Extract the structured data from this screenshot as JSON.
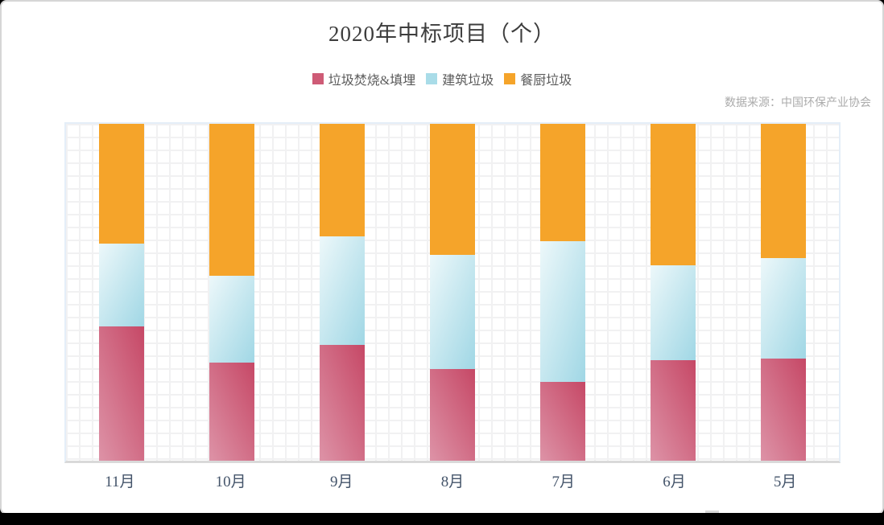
{
  "chart_data": {
    "type": "bar",
    "stacked": true,
    "normalized": "each bar fills full plot height; values are percent shares estimated from segment pixel heights",
    "title": "2020年中标项目（个）",
    "source_note": "数据来源：中国环保产业协会",
    "categories": [
      "11月",
      "10月",
      "9月",
      "8月",
      "7月",
      "6月",
      "5月"
    ],
    "series": [
      {
        "name": "垃圾焚烧&填埋",
        "color": "#ce5b76",
        "gradient": {
          "direction": "to bottom left",
          "from": "#c64866",
          "to": "#dd93a7"
        },
        "values": [
          39.9,
          29.0,
          34.4,
          27.3,
          23.5,
          29.9,
          30.4
        ]
      },
      {
        "name": "建筑垃圾",
        "color": "#a9dce8",
        "gradient": {
          "direction": "to bottom right",
          "from": "#edf8fa",
          "to": "#a0d7e5"
        },
        "values": [
          24.5,
          25.9,
          32.3,
          33.7,
          41.6,
          28.1,
          29.7
        ]
      },
      {
        "name": "餐厨垃圾",
        "color": "#f5a42a",
        "gradient": {
          "direction": "to bottom",
          "from": "#f5a42a",
          "to": "#f5a42a"
        },
        "values": [
          35.6,
          45.1,
          33.3,
          39.0,
          34.9,
          42.0,
          39.9
        ]
      }
    ],
    "stack_order_bottom_to_top": [
      "垃圾焚烧&填埋",
      "建筑垃圾",
      "餐厨垃圾"
    ],
    "ylim": [
      0,
      100
    ],
    "grid": true,
    "legend_position": "top",
    "y_axis_labels_visible": false
  },
  "colors": {
    "card_border": "#d6d6d6",
    "grid_line": "#f1f1f2",
    "plot_border": "#e4eef8",
    "axis_line": "#d9d9d9",
    "title_text": "#3d3d3d",
    "legend_text": "#5a5a5a",
    "source_text": "#ababab",
    "xlabel_text": "#44546a",
    "bottom_strip": "#000000"
  }
}
